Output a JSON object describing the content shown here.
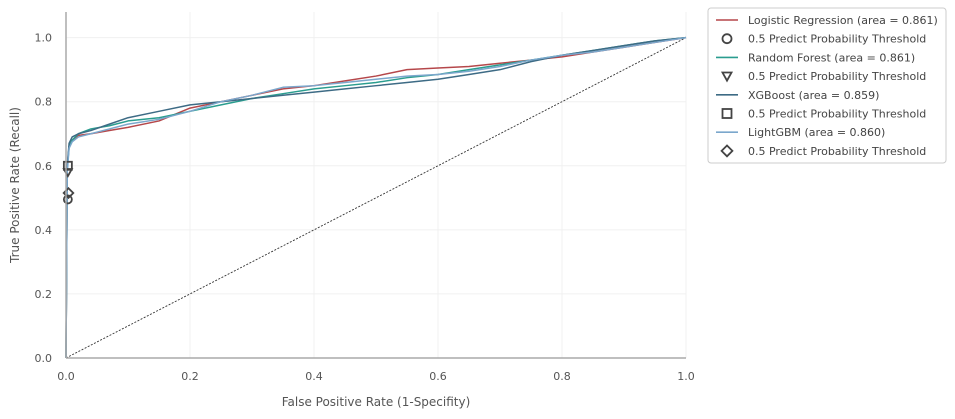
{
  "chart_data": {
    "type": "line",
    "xlabel": "False Positive Rate (1-Specifity)",
    "ylabel": "True Positive Rate (Recall)",
    "xlim": [
      0,
      1
    ],
    "ylim": [
      0,
      1.08
    ],
    "x_ticks": [
      "0.0",
      "0.2",
      "0.4",
      "0.6",
      "0.8",
      "1.0"
    ],
    "y_ticks": [
      "0.0",
      "0.2",
      "0.4",
      "0.6",
      "0.8",
      "1.0"
    ],
    "grid": true,
    "legend_position": "outside-top-right",
    "diagonal": {
      "x": [
        0,
        1
      ],
      "y": [
        0,
        1
      ],
      "color": "#333333"
    },
    "legend_entries": [
      {
        "label": "Logistic Regression (area = 0.861)",
        "kind": "line",
        "color": "#b5474a"
      },
      {
        "label": "0.5 Predict Probability Threshold",
        "kind": "marker",
        "marker": "circle",
        "color": "#444444"
      },
      {
        "label": "Random Forest (area = 0.861)",
        "kind": "line",
        "color": "#2a9d8f"
      },
      {
        "label": "0.5 Predict Probability Threshold",
        "kind": "marker",
        "marker": "triangle-down",
        "color": "#444444"
      },
      {
        "label": "XGBoost (area = 0.859)",
        "kind": "line",
        "color": "#3d6b85"
      },
      {
        "label": "0.5 Predict Probability Threshold",
        "kind": "marker",
        "marker": "square",
        "color": "#444444"
      },
      {
        "label": "LightGBM (area = 0.860)",
        "kind": "line",
        "color": "#7ba7cc"
      },
      {
        "label": "0.5 Predict Probability Threshold",
        "kind": "marker",
        "marker": "diamond",
        "color": "#444444"
      }
    ],
    "series": [
      {
        "name": "Logistic Regression (area = 0.861)",
        "color": "#b5474a",
        "x": [
          0,
          0.002,
          0.005,
          0.01,
          0.02,
          0.04,
          0.07,
          0.1,
          0.15,
          0.2,
          0.25,
          0.3,
          0.35,
          0.4,
          0.45,
          0.5,
          0.55,
          0.6,
          0.65,
          0.7,
          0.75,
          0.8,
          0.85,
          0.9,
          0.95,
          1.0
        ],
        "y": [
          0,
          0.6,
          0.66,
          0.68,
          0.695,
          0.7,
          0.71,
          0.72,
          0.74,
          0.78,
          0.8,
          0.82,
          0.84,
          0.85,
          0.865,
          0.88,
          0.9,
          0.905,
          0.91,
          0.92,
          0.93,
          0.94,
          0.955,
          0.97,
          0.985,
          1.0
        ]
      },
      {
        "name": "Random Forest (area = 0.861)",
        "color": "#2a9d8f",
        "x": [
          0,
          0.002,
          0.005,
          0.01,
          0.02,
          0.04,
          0.07,
          0.1,
          0.15,
          0.2,
          0.25,
          0.3,
          0.35,
          0.4,
          0.45,
          0.5,
          0.55,
          0.6,
          0.65,
          0.7,
          0.75,
          0.8,
          0.85,
          0.9,
          0.95,
          1.0
        ],
        "y": [
          0,
          0.59,
          0.66,
          0.68,
          0.7,
          0.715,
          0.725,
          0.74,
          0.75,
          0.77,
          0.79,
          0.81,
          0.825,
          0.84,
          0.85,
          0.86,
          0.875,
          0.885,
          0.9,
          0.915,
          0.93,
          0.945,
          0.96,
          0.975,
          0.99,
          1.0
        ]
      },
      {
        "name": "XGBoost (area = 0.859)",
        "color": "#3d6b85",
        "x": [
          0,
          0.002,
          0.005,
          0.01,
          0.02,
          0.04,
          0.07,
          0.1,
          0.15,
          0.2,
          0.25,
          0.3,
          0.35,
          0.4,
          0.45,
          0.5,
          0.55,
          0.6,
          0.65,
          0.7,
          0.75,
          0.8,
          0.85,
          0.9,
          0.95,
          1.0
        ],
        "y": [
          0,
          0.6,
          0.67,
          0.69,
          0.7,
          0.71,
          0.73,
          0.75,
          0.77,
          0.79,
          0.8,
          0.81,
          0.82,
          0.83,
          0.84,
          0.85,
          0.86,
          0.87,
          0.885,
          0.9,
          0.925,
          0.945,
          0.96,
          0.975,
          0.99,
          1.0
        ]
      },
      {
        "name": "LightGBM (area = 0.860)",
        "color": "#7ba7cc",
        "x": [
          0,
          0.002,
          0.005,
          0.01,
          0.02,
          0.04,
          0.07,
          0.1,
          0.15,
          0.2,
          0.25,
          0.3,
          0.35,
          0.4,
          0.45,
          0.5,
          0.55,
          0.6,
          0.65,
          0.7,
          0.75,
          0.8,
          0.85,
          0.9,
          0.95,
          1.0
        ],
        "y": [
          0,
          0.58,
          0.655,
          0.675,
          0.69,
          0.7,
          0.715,
          0.73,
          0.745,
          0.77,
          0.8,
          0.82,
          0.845,
          0.85,
          0.86,
          0.87,
          0.88,
          0.885,
          0.895,
          0.91,
          0.93,
          0.945,
          0.955,
          0.97,
          0.985,
          1.0
        ]
      }
    ],
    "threshold_markers": [
      {
        "name": "Logistic Regression threshold",
        "marker": "circle",
        "x": 0.003,
        "y": 0.495
      },
      {
        "name": "Random Forest threshold",
        "marker": "triangle-down",
        "x": 0.003,
        "y": 0.58
      },
      {
        "name": "XGBoost threshold",
        "marker": "square",
        "x": 0.003,
        "y": 0.6
      },
      {
        "name": "LightGBM threshold",
        "marker": "diamond",
        "x": 0.004,
        "y": 0.515
      }
    ]
  }
}
